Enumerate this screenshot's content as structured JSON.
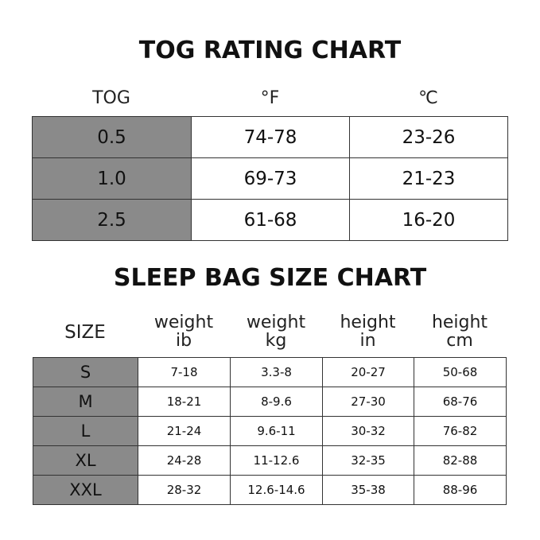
{
  "tog_chart": {
    "title": "TOG RATING CHART",
    "headers": [
      "TOG",
      "°F",
      "℃"
    ],
    "rows": [
      [
        "0.5",
        "74-78",
        "23-26"
      ],
      [
        "1.0",
        "69-73",
        "21-23"
      ],
      [
        "2.5",
        "61-68",
        "16-20"
      ]
    ]
  },
  "size_chart": {
    "title": "SLEEP BAG SIZE CHART",
    "headers": [
      [
        "SIZE"
      ],
      [
        "weight",
        "ib"
      ],
      [
        "weight",
        "kg"
      ],
      [
        "height",
        "in"
      ],
      [
        "height",
        "cm"
      ]
    ],
    "rows": [
      [
        "S",
        "7-18",
        "3.3-8",
        "20-27",
        "50-68"
      ],
      [
        "M",
        "18-21",
        "8-9.6",
        "27-30",
        "68-76"
      ],
      [
        "L",
        "21-24",
        "9.6-11",
        "30-32",
        "76-82"
      ],
      [
        "XL",
        "24-28",
        "11-12.6",
        "32-35",
        "82-88"
      ],
      [
        "XXL",
        "28-32",
        "12.6-14.6",
        "35-38",
        "88-96"
      ]
    ]
  },
  "colors": {
    "key_cell": "#8a8a8a",
    "border": "#333333"
  }
}
